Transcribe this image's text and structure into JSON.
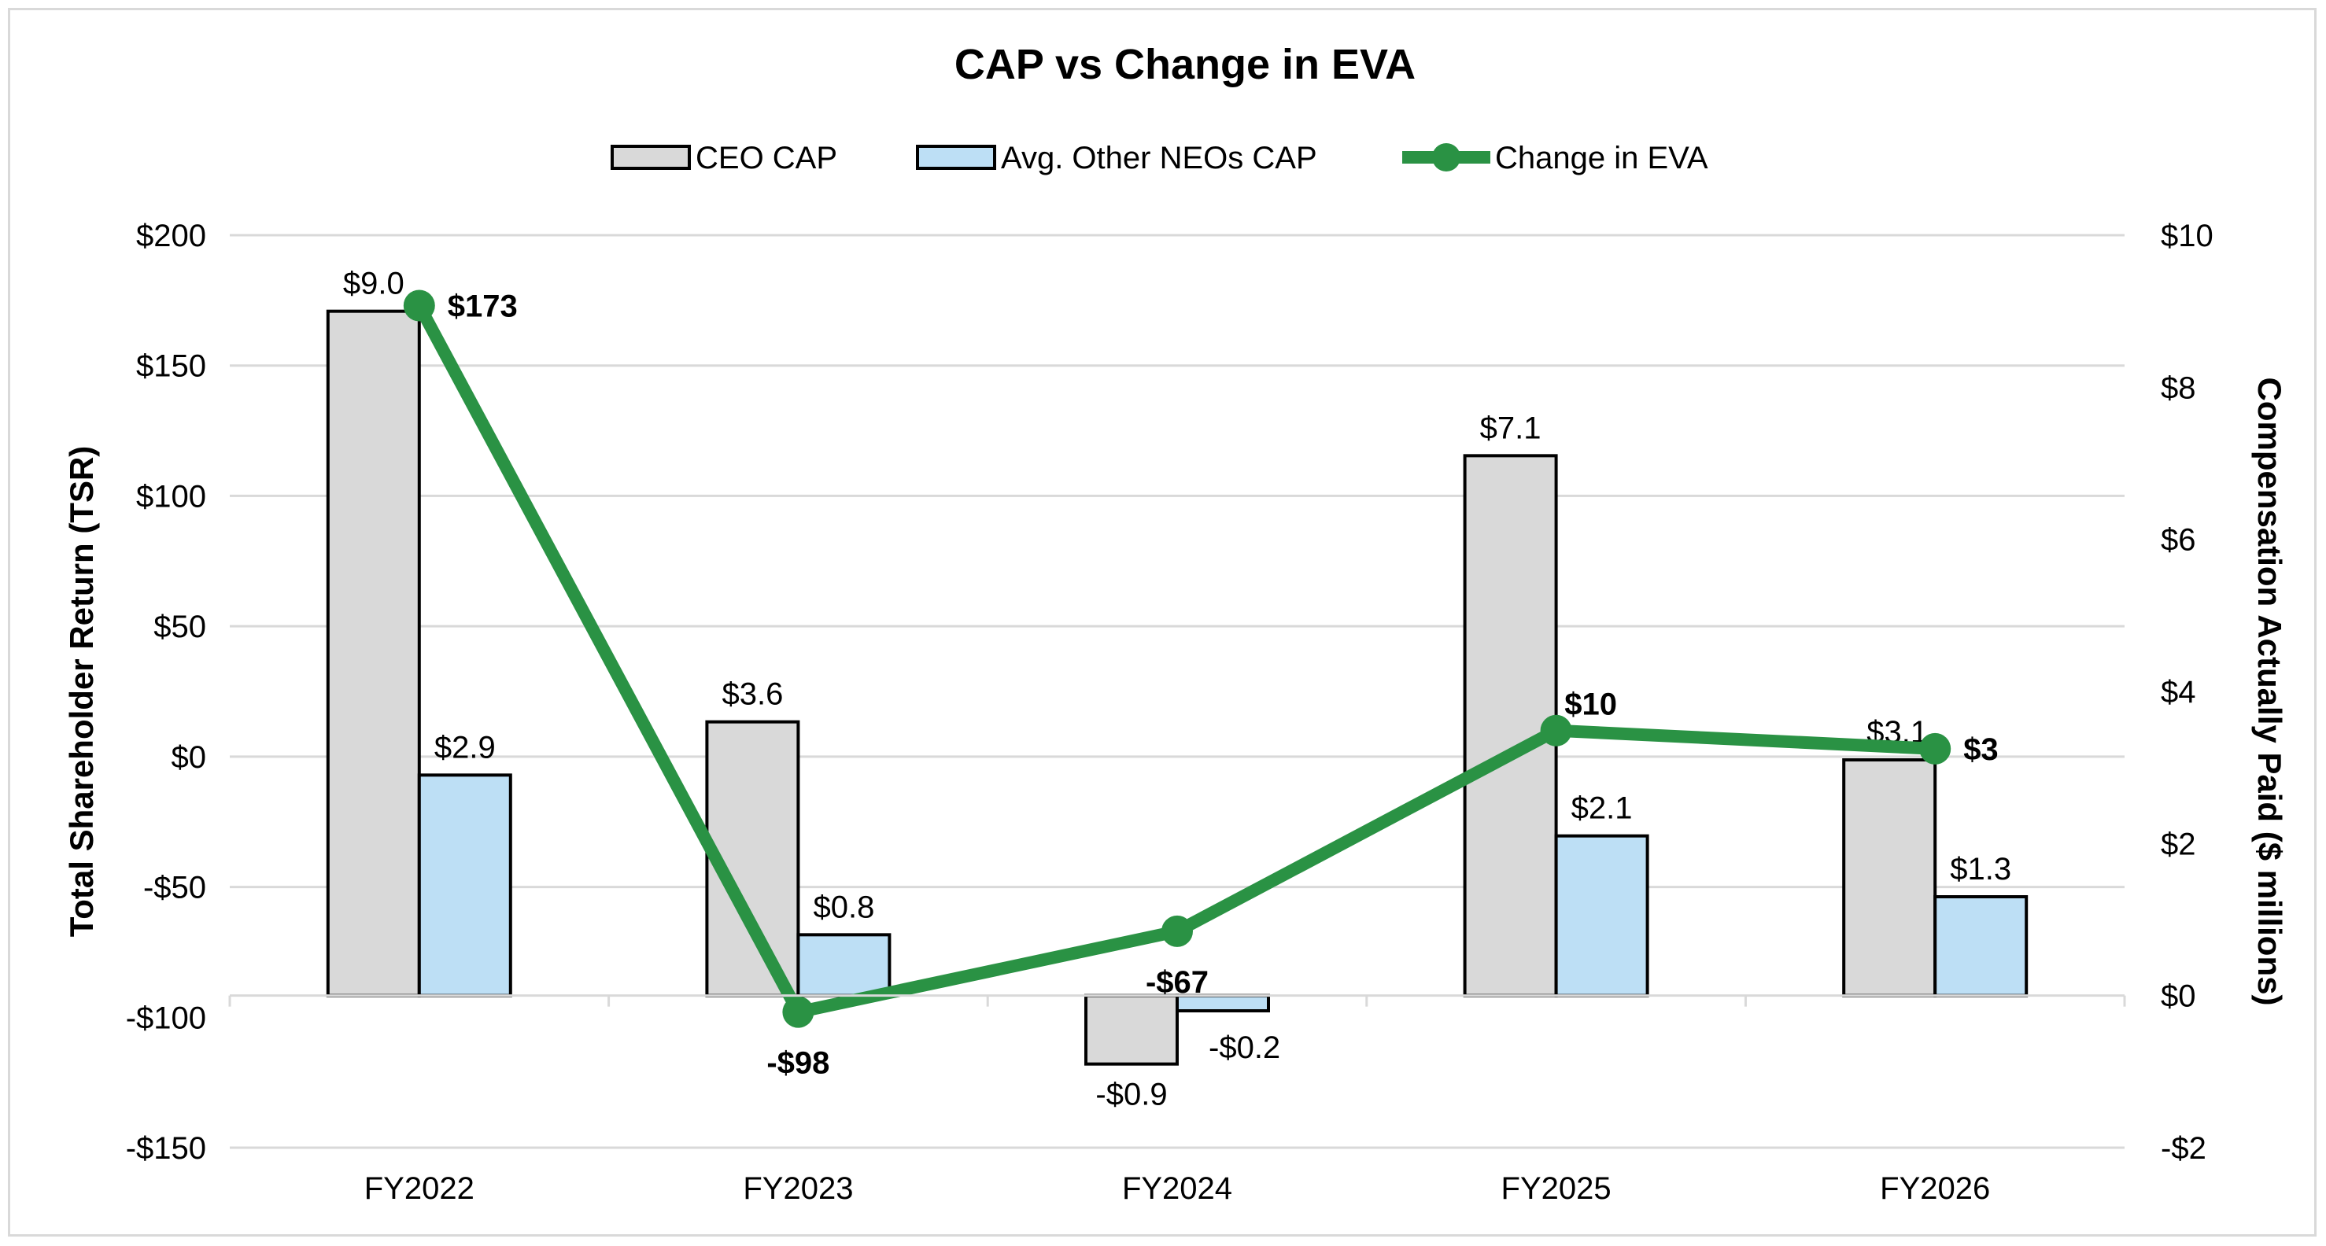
{
  "chart_data": {
    "type": "bar+line",
    "title": "CAP vs Change in EVA",
    "categories": [
      "FY2022",
      "FY2023",
      "FY2024",
      "FY2025",
      "FY2026"
    ],
    "y_left": {
      "label": "Total Shareholder Return (TSR)",
      "range": [
        -150,
        200
      ],
      "ticks": [
        200,
        150,
        100,
        50,
        0,
        -50,
        -100,
        -150
      ],
      "tick_labels": [
        "$200",
        "$150",
        "$100",
        "$50",
        "$0",
        "-$50",
        "-$100",
        "-$150"
      ]
    },
    "y_right": {
      "label": "Compensation Actually Paid ($ millions)",
      "range": [
        -2,
        10
      ],
      "ticks": [
        10,
        8,
        6,
        4,
        2,
        0,
        -2
      ],
      "tick_labels": [
        "$10",
        "$8",
        "$6",
        "$4",
        "$2",
        "$0",
        "-$2"
      ]
    },
    "series": [
      {
        "name": "CEO CAP",
        "type": "bar",
        "axis": "right",
        "color": "#d9d9d9",
        "values": [
          9.0,
          3.6,
          -0.9,
          7.1,
          3.1
        ],
        "labels": [
          "$9.0",
          "$3.6",
          "-$0.9",
          "$7.1",
          "$3.1"
        ]
      },
      {
        "name": "Avg. Other NEOs CAP",
        "type": "bar",
        "axis": "right",
        "color": "#bddff5",
        "values": [
          2.9,
          0.8,
          -0.2,
          2.1,
          1.3
        ],
        "labels": [
          "$2.9",
          "$0.8",
          "-$0.2",
          "$2.1",
          "$1.3"
        ]
      },
      {
        "name": "Change in EVA",
        "type": "line",
        "axis": "left",
        "color": "#2a9244",
        "values": [
          173,
          -98,
          -67,
          10,
          3
        ],
        "labels": [
          "$173",
          "-$98",
          "-$67",
          "$10",
          "$3"
        ]
      }
    ],
    "grid": true,
    "legend": "top-center"
  }
}
